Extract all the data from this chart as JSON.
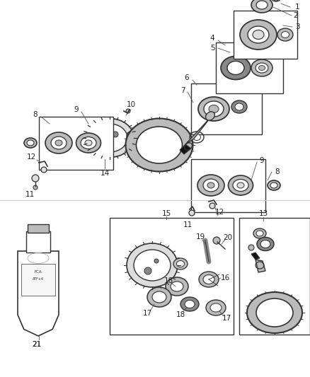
{
  "bg_color": "#ffffff",
  "fig_width": 4.38,
  "fig_height": 5.33,
  "dpi": 100,
  "line_color": "#333333",
  "dark": "#222222",
  "light_gray": "#bbbbbb",
  "mid_gray": "#888888",
  "dark_gray": "#555555",
  "very_light": "#dddddd"
}
